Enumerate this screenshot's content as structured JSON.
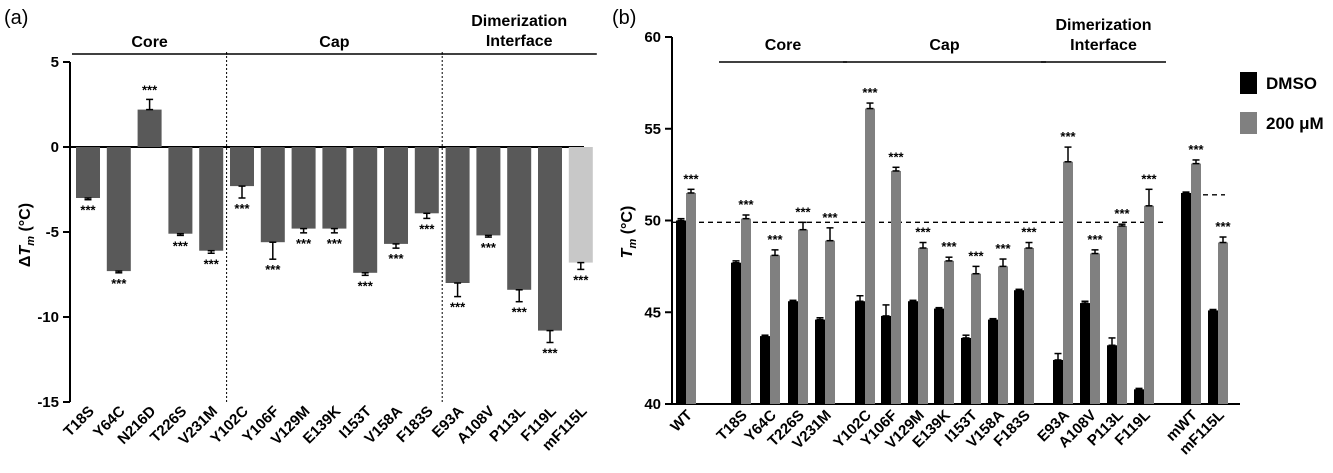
{
  "chart_data": [
    {
      "type": "bar",
      "panel_label": "(a)",
      "ylabel": "ΔTm (°C)",
      "ylabel_main": "Δ",
      "ylabel_var": "T",
      "ylabel_sub": "m",
      "ylabel_unit": " (°C)",
      "ylim": [
        -15,
        5
      ],
      "yticks": [
        5,
        0,
        -5,
        -10,
        -15
      ],
      "ytick_labels": [
        "5",
        "0",
        "-5",
        "-10",
        "-15"
      ],
      "categories": [
        "T18S",
        "Y64C",
        "N216D",
        "T226S",
        "V231M",
        "Y102C",
        "Y106F",
        "V129M",
        "E139K",
        "I153T",
        "V158A",
        "F183S",
        "E93A",
        "A108V",
        "P113L",
        "F119L",
        "mF115L"
      ],
      "values": [
        -3.0,
        -7.3,
        2.2,
        -5.1,
        -6.1,
        -2.3,
        -5.6,
        -4.8,
        -4.8,
        -7.4,
        -5.7,
        -3.9,
        -8.0,
        -5.2,
        -8.4,
        -10.8,
        -6.8
      ],
      "errors": [
        0.1,
        0.1,
        0.6,
        0.1,
        0.15,
        0.7,
        1.0,
        0.25,
        0.25,
        0.15,
        0.25,
        0.3,
        0.8,
        0.1,
        0.7,
        0.7,
        0.4
      ],
      "significance": [
        "***",
        "***",
        "***",
        "***",
        "***",
        "***",
        "***",
        "***",
        "***",
        "***",
        "***",
        "***",
        "***",
        "***",
        "***",
        "***",
        "***"
      ],
      "bar_colors": [
        "#595959",
        "#595959",
        "#595959",
        "#595959",
        "#595959",
        "#595959",
        "#595959",
        "#595959",
        "#595959",
        "#595959",
        "#595959",
        "#595959",
        "#595959",
        "#595959",
        "#595959",
        "#595959",
        "#c8c8c8"
      ],
      "groups": [
        {
          "label_lines": [
            "Core"
          ],
          "start": 0,
          "end": 4
        },
        {
          "label_lines": [
            "Cap"
          ],
          "start": 5,
          "end": 11
        },
        {
          "label_lines": [
            "Dimerization",
            "Interface"
          ],
          "start": 12,
          "end": 16
        }
      ],
      "separators_after": [
        4,
        11
      ],
      "grid": false
    },
    {
      "type": "bar",
      "panel_label": "(b)",
      "ylabel": "Tm (°C)",
      "ylabel_var": "T",
      "ylabel_sub": "m",
      "ylabel_unit": " (°C)",
      "ylim": [
        40,
        60
      ],
      "yticks": [
        40,
        45,
        50,
        55,
        60
      ],
      "ytick_labels": [
        "40",
        "45",
        "50",
        "55",
        "60"
      ],
      "categories": [
        "WT",
        "T18S",
        "Y64C",
        "T226S",
        "V231M",
        "Y102C",
        "Y106F",
        "V129M",
        "E139K",
        "I153T",
        "V158A",
        "F183S",
        "E93A",
        "A108V",
        "P113L",
        "F119L",
        "mWT",
        "mF115L"
      ],
      "series": [
        {
          "name": "DMSO",
          "color": "#000000",
          "values": [
            50.0,
            47.7,
            43.7,
            45.6,
            44.6,
            45.6,
            44.8,
            45.6,
            45.2,
            43.6,
            44.6,
            46.2,
            42.4,
            45.5,
            43.2,
            40.8,
            51.5,
            45.1
          ],
          "errors": [
            0.1,
            0.1,
            0.05,
            0.05,
            0.1,
            0.3,
            0.6,
            0.05,
            0.05,
            0.15,
            0.05,
            0.05,
            0.35,
            0.1,
            0.4,
            0.05,
            0.05,
            0.05
          ]
        },
        {
          "name": "200 μM",
          "color": "#808080",
          "values": [
            51.5,
            50.1,
            48.1,
            49.5,
            48.9,
            56.1,
            52.7,
            48.5,
            47.8,
            47.1,
            47.5,
            48.5,
            53.2,
            48.2,
            49.7,
            50.8,
            53.1,
            48.8
          ],
          "errors": [
            0.2,
            0.2,
            0.3,
            0.4,
            0.7,
            0.3,
            0.2,
            0.3,
            0.2,
            0.4,
            0.4,
            0.3,
            0.8,
            0.2,
            0.1,
            0.9,
            0.2,
            0.3
          ]
        }
      ],
      "significance": [
        "***",
        "***",
        "***",
        "***",
        "***",
        "***",
        "***",
        "***",
        "***",
        "***",
        "***",
        "***",
        "***",
        "***",
        "***",
        "***",
        "***",
        "***"
      ],
      "reference_lines": [
        49.9,
        51.4
      ],
      "groups": [
        {
          "label_lines": [
            "Core"
          ],
          "start": 1,
          "end": 4
        },
        {
          "label_lines": [
            "Cap"
          ],
          "start": 5,
          "end": 11
        },
        {
          "label_lines": [
            "Dimerization",
            "Interface"
          ],
          "start": 12,
          "end": 15
        }
      ],
      "legend_position": "top-right",
      "grid": false
    }
  ]
}
